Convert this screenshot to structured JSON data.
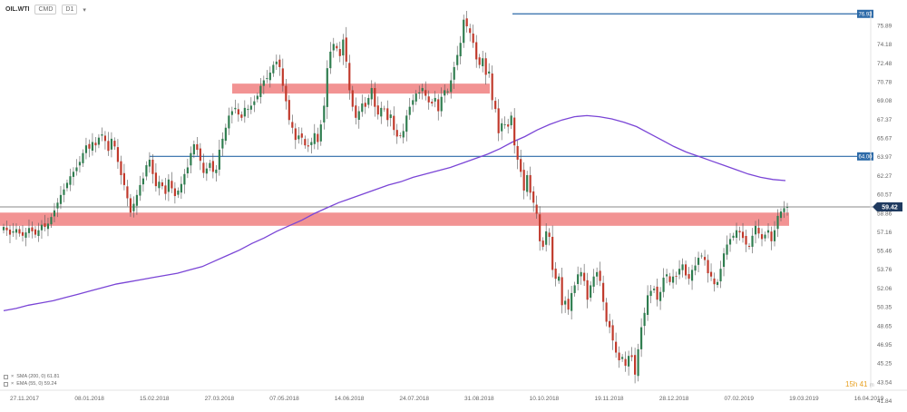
{
  "header": {
    "symbol": "OIL.WTI",
    "sub1": "CMD",
    "interval": "D1"
  },
  "timer": {
    "main": "15h 41",
    "sec": "m"
  },
  "colors": {
    "bull": "#2f7d4f",
    "bear": "#c0392b",
    "zone": "#f08080",
    "hline": "#2c6aa8",
    "sma": "#7a45d6",
    "last": "#1f3a5f"
  },
  "legend": [
    {
      "text": "SMA (200, 0) 61.81"
    },
    {
      "text": "EMA (55, 0) 59.24"
    }
  ],
  "chart_data": {
    "type": "candlestick",
    "ylim": [
      42.95,
      77.2
    ],
    "y_ticks": [
      "75.89",
      "74.18",
      "72.48",
      "70.78",
      "69.08",
      "67.37",
      "65.67",
      "63.97",
      "62.27",
      "60.57",
      "58.86",
      "57.16",
      "55.46",
      "53.76",
      "52.06",
      "50.35",
      "48.65",
      "46.95",
      "45.25",
      "43.54",
      "41.84"
    ],
    "x_ticks": [
      "27.11.2017",
      "08.01.2018",
      "15.02.2018",
      "27.03.2018",
      "07.05.2018",
      "14.06.2018",
      "24.07.2018",
      "31.08.2018",
      "10.10.2018",
      "19.11.2018",
      "28.12.2018",
      "07.02.2019",
      "19.03.2019",
      "16.04.2019"
    ],
    "horizontal_levels": [
      {
        "label": "76.93",
        "value": 76.93
      },
      {
        "label": "64.00",
        "value": 64.0
      }
    ],
    "current_price": {
      "label": "59.42",
      "value": 59.42
    },
    "zones": [
      {
        "from": 69.7,
        "to": 70.6
      },
      {
        "from": 57.7,
        "to": 58.9
      }
    ],
    "closes": [
      57.6,
      57.3,
      56.9,
      57.2,
      57.4,
      57.0,
      56.8,
      57.1,
      57.5,
      57.2,
      56.9,
      57.3,
      57.8,
      57.6,
      57.9,
      58.5,
      59.1,
      59.8,
      60.5,
      61.0,
      61.6,
      62.2,
      62.6,
      63.0,
      63.5,
      64.3,
      65.0,
      64.7,
      65.3,
      65.0,
      65.7,
      66.0,
      65.4,
      64.5,
      65.6,
      64.9,
      63.5,
      62.3,
      61.4,
      60.2,
      58.9,
      59.7,
      60.5,
      61.4,
      62.0,
      63.2,
      63.7,
      62.4,
      61.3,
      61.7,
      61.3,
      60.6,
      61.9,
      61.1,
      60.4,
      60.9,
      61.5,
      62.4,
      63.0,
      64.3,
      65.1,
      64.6,
      63.6,
      62.5,
      62.9,
      63.4,
      62.6,
      62.8,
      64.6,
      65.6,
      66.6,
      67.7,
      68.1,
      68.4,
      67.8,
      67.5,
      68.4,
      68.3,
      68.6,
      69.0,
      69.5,
      70.4,
      70.9,
      71.1,
      71.6,
      72.3,
      72.6,
      72.1,
      70.4,
      69.0,
      67.3,
      66.6,
      65.5,
      65.9,
      65.7,
      65.0,
      64.9,
      65.3,
      66.1,
      65.3,
      66.9,
      68.6,
      72.0,
      73.5,
      74.2,
      73.8,
      73.1,
      74.6,
      72.6,
      70.0,
      68.5,
      67.5,
      68.1,
      68.8,
      68.5,
      69.3,
      70.2,
      68.5,
      67.8,
      68.4,
      68.3,
      67.3,
      67.8,
      66.4,
      65.8,
      65.9,
      66.3,
      67.7,
      68.5,
      69.1,
      69.7,
      69.8,
      70.2,
      69.5,
      68.9,
      68.8,
      69.3,
      68.1,
      69.4,
      70.0,
      69.9,
      70.9,
      72.1,
      73.2,
      74.3,
      76.4,
      75.8,
      75.2,
      74.3,
      72.8,
      72.3,
      72.9,
      71.4,
      71.7,
      69.1,
      68.3,
      66.1,
      67.0,
      66.9,
      66.7,
      67.7,
      65.0,
      63.7,
      62.6,
      60.9,
      62.3,
      60.7,
      59.8,
      58.8,
      56.3,
      55.8,
      57.2,
      56.7,
      53.7,
      52.9,
      53.1,
      50.5,
      50.9,
      50.1,
      51.6,
      52.3,
      53.3,
      53.5,
      52.7,
      51.0,
      52.3,
      53.1,
      53.5,
      52.7,
      50.8,
      49.0,
      48.5,
      47.3,
      46.2,
      45.5,
      45.8,
      45.0,
      45.9,
      45.8,
      44.2,
      46.5,
      48.5,
      49.8,
      51.4,
      51.8,
      52.0,
      51.0,
      51.7,
      53.0,
      53.3,
      52.6,
      53.1,
      53.1,
      53.8,
      54.2,
      53.2,
      52.9,
      53.7,
      54.1,
      54.8,
      55.0,
      54.6,
      53.4,
      53.1,
      52.4,
      52.6,
      53.8,
      55.2,
      56.0,
      56.5,
      56.8,
      57.3,
      57.1,
      56.6,
      56.0,
      55.8,
      56.8,
      57.7,
      57.0,
      56.5,
      56.9,
      57.3,
      56.3,
      57.3,
      58.6,
      59.0,
      59.3,
      59.4
    ],
    "sma_200": [
      50.0,
      50.2,
      50.5,
      50.7,
      50.9,
      51.2,
      51.5,
      51.8,
      52.1,
      52.4,
      52.6,
      52.8,
      53.0,
      53.2,
      53.4,
      53.7,
      54.0,
      54.5,
      55.0,
      55.5,
      56.1,
      56.6,
      57.2,
      57.7,
      58.2,
      58.8,
      59.3,
      59.8,
      60.2,
      60.6,
      61.0,
      61.4,
      61.7,
      62.1,
      62.4,
      62.7,
      63.0,
      63.4,
      63.8,
      64.2,
      64.7,
      65.3,
      65.8,
      66.4,
      66.9,
      67.3,
      67.6,
      67.7,
      67.6,
      67.4,
      67.1,
      66.7,
      66.1,
      65.5,
      64.9,
      64.4,
      64.0,
      63.6,
      63.2,
      62.8,
      62.4,
      62.1,
      61.9,
      61.8
    ]
  }
}
